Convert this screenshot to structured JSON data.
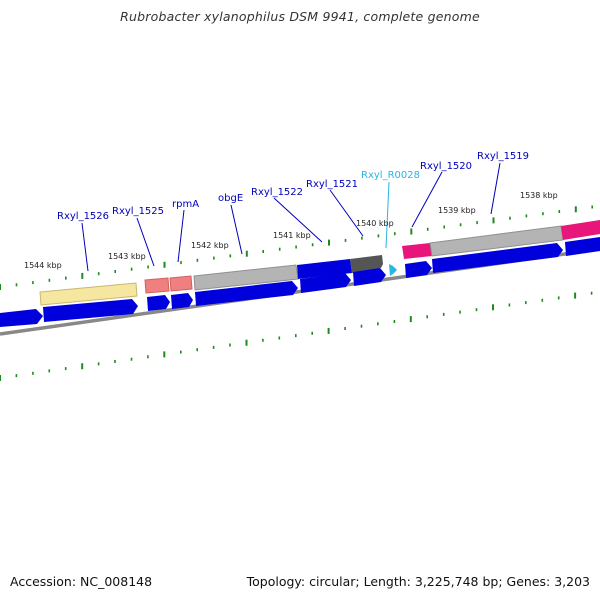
{
  "title": "Rubrobacter xylanophilus DSM 9941, complete genome",
  "footer": {
    "accession": "Accession: NC_008148",
    "summary": "Topology: circular; Length: 3,225,748 bp; Genes: 3,203"
  },
  "colors": {
    "cds": "#0000dd",
    "gene_gray": "#b4b4b4",
    "dark_gray": "#555555",
    "yellow": "#f5e6a0",
    "salmon": "#f08080",
    "pink": "#e8157a",
    "trna": "#29b6e0",
    "label_blue": "#0000bb",
    "label_cyan": "#29b6e0",
    "tick_green": "#1f8a1f",
    "backbone": "#888888"
  },
  "kbp_labels": [
    "1544 kbp",
    "1543 kbp",
    "1542 kbp",
    "1541 kbp",
    "1540 kbp",
    "1539 kbp",
    "1538 kbp"
  ],
  "gene_labels": [
    {
      "text": "Rxyl_1526",
      "color": "blue"
    },
    {
      "text": "Rxyl_1525",
      "color": "blue"
    },
    {
      "text": "rpmA",
      "color": "blue"
    },
    {
      "text": "obgE",
      "color": "blue"
    },
    {
      "text": "Rxyl_1522",
      "color": "blue"
    },
    {
      "text": "Rxyl_1521",
      "color": "blue"
    },
    {
      "text": "Rxyl_R0028",
      "color": "cyan"
    },
    {
      "text": "Rxyl_1520",
      "color": "blue"
    },
    {
      "text": "Rxyl_1519",
      "color": "blue"
    }
  ]
}
